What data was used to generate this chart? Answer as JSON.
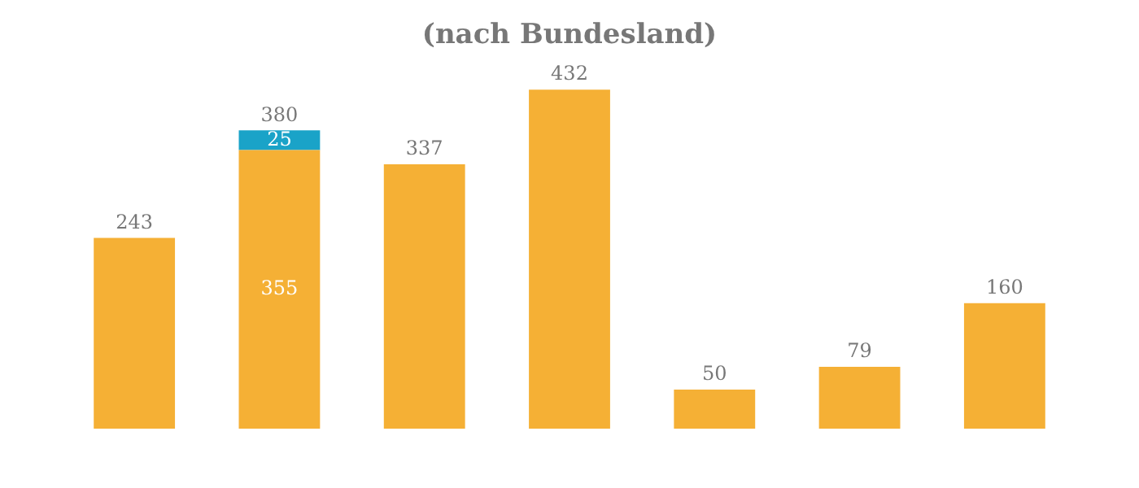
{
  "chart_data": {
    "type": "bar",
    "title": "(nach Bundesland)",
    "categories": [
      null,
      null,
      null,
      null,
      null,
      null,
      null
    ],
    "stacked": true,
    "series": [
      {
        "color": "#f5b035",
        "values": [
          243,
          355,
          337,
          432,
          50,
          79,
          160
        ],
        "value_labels": [
          null,
          "355",
          null,
          null,
          null,
          null,
          null
        ]
      },
      {
        "color": "#1aa3c8",
        "values": [
          null,
          25,
          null,
          null,
          null,
          null,
          null
        ],
        "value_labels": [
          null,
          "25",
          null,
          null,
          null,
          null,
          null
        ]
      }
    ],
    "totals": [
      "243",
      "380",
      "337",
      "432",
      "50",
      "79",
      "160"
    ],
    "grid": false,
    "legend": false
  }
}
